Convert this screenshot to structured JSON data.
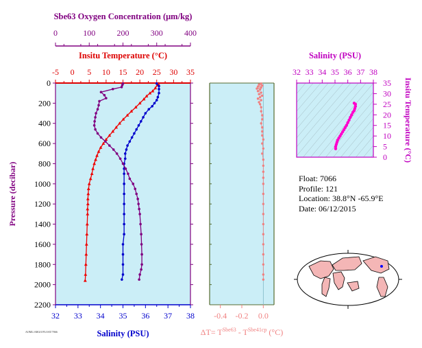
{
  "chart_data": [
    {
      "type": "scatter",
      "name": "profile",
      "ylabel": "Pressure (decibar)",
      "ylim": [
        2200,
        0
      ],
      "yticks": [
        0,
        200,
        400,
        600,
        800,
        1000,
        1200,
        1400,
        1600,
        1800,
        2000,
        2200
      ],
      "axes": {
        "oxygen": {
          "label": "Sbe63 Oxygen Concentration (μm/kg)",
          "range": [
            0,
            400
          ],
          "ticks": [
            0,
            100,
            200,
            300,
            400
          ],
          "color": "#800080"
        },
        "temperature": {
          "label": "Insitu Temperature (°C)",
          "range": [
            -5,
            35
          ],
          "ticks": [
            -5,
            0,
            5,
            10,
            15,
            20,
            25,
            30,
            35
          ],
          "color": "#dd0000"
        },
        "salinity": {
          "label": "Salinity (PSU)",
          "range": [
            32,
            38
          ],
          "ticks": [
            32,
            33,
            34,
            35,
            36,
            37,
            38
          ],
          "color": "#0000cc"
        }
      },
      "series": [
        {
          "key": "temperature",
          "color": "#ee0000",
          "marker": "triangle",
          "points": [
            [
              25.5,
              5
            ],
            [
              25.2,
              20
            ],
            [
              24.6,
              50
            ],
            [
              23.8,
              80
            ],
            [
              23.0,
              100
            ],
            [
              22.0,
              130
            ],
            [
              21.2,
              160
            ],
            [
              20.0,
              200
            ],
            [
              18.8,
              240
            ],
            [
              17.5,
              280
            ],
            [
              16.3,
              320
            ],
            [
              15.1,
              360
            ],
            [
              14.0,
              400
            ],
            [
              13.0,
              440
            ],
            [
              12.0,
              480
            ],
            [
              11.0,
              520
            ],
            [
              10.0,
              560
            ],
            [
              9.2,
              600
            ],
            [
              8.4,
              640
            ],
            [
              7.8,
              680
            ],
            [
              7.3,
              720
            ],
            [
              6.9,
              760
            ],
            [
              6.5,
              800
            ],
            [
              6.1,
              850
            ],
            [
              5.8,
              900
            ],
            [
              5.4,
              950
            ],
            [
              5.0,
              1000
            ],
            [
              4.8,
              1050
            ],
            [
              4.7,
              1100
            ],
            [
              4.6,
              1150
            ],
            [
              4.6,
              1200
            ],
            [
              4.5,
              1250
            ],
            [
              4.5,
              1300
            ],
            [
              4.4,
              1400
            ],
            [
              4.3,
              1500
            ],
            [
              4.2,
              1600
            ],
            [
              4.1,
              1700
            ],
            [
              4.0,
              1800
            ],
            [
              3.9,
              1900
            ],
            [
              3.8,
              1960
            ]
          ]
        },
        {
          "key": "salinity",
          "color": "#0000cc",
          "marker": "dot",
          "points": [
            [
              36.5,
              5
            ],
            [
              36.6,
              30
            ],
            [
              36.6,
              60
            ],
            [
              36.6,
              100
            ],
            [
              36.55,
              140
            ],
            [
              36.5,
              170
            ],
            [
              36.4,
              200
            ],
            [
              36.3,
              230
            ],
            [
              36.15,
              260
            ],
            [
              36.0,
              300
            ],
            [
              35.9,
              340
            ],
            [
              35.8,
              380
            ],
            [
              35.7,
              420
            ],
            [
              35.6,
              460
            ],
            [
              35.5,
              500
            ],
            [
              35.4,
              540
            ],
            [
              35.3,
              580
            ],
            [
              35.2,
              620
            ],
            [
              35.15,
              660
            ],
            [
              35.1,
              700
            ],
            [
              35.1,
              750
            ],
            [
              35.05,
              800
            ],
            [
              35.05,
              850
            ],
            [
              35.05,
              900
            ],
            [
              35.05,
              1000
            ],
            [
              35.05,
              1100
            ],
            [
              35.05,
              1200
            ],
            [
              35.05,
              1300
            ],
            [
              35.05,
              1400
            ],
            [
              35.05,
              1500
            ],
            [
              35.0,
              1600
            ],
            [
              35.0,
              1700
            ],
            [
              35.0,
              1800
            ],
            [
              35.0,
              1900
            ],
            [
              34.95,
              1950
            ]
          ]
        },
        {
          "key": "oxygen",
          "color": "#800080",
          "marker": "dot",
          "points": [
            [
              200,
              5
            ],
            [
              198,
              20
            ],
            [
              196,
              40
            ],
            [
              170,
              60
            ],
            [
              135,
              90
            ],
            [
              145,
              120
            ],
            [
              150,
              150
            ],
            [
              130,
              180
            ],
            [
              128,
              220
            ],
            [
              125,
              260
            ],
            [
              120,
              300
            ],
            [
              118,
              340
            ],
            [
              116,
              380
            ],
            [
              115,
              420
            ],
            [
              118,
              460
            ],
            [
              125,
              500
            ],
            [
              135,
              540
            ],
            [
              148,
              580
            ],
            [
              160,
              620
            ],
            [
              172,
              660
            ],
            [
              182,
              700
            ],
            [
              192,
              750
            ],
            [
              200,
              800
            ],
            [
              208,
              850
            ],
            [
              215,
              900
            ],
            [
              220,
              950
            ],
            [
              230,
              1000
            ],
            [
              236,
              1050
            ],
            [
              240,
              1100
            ],
            [
              244,
              1150
            ],
            [
              246,
              1200
            ],
            [
              248,
              1250
            ],
            [
              250,
              1300
            ],
            [
              252,
              1400
            ],
            [
              254,
              1500
            ],
            [
              255,
              1600
            ],
            [
              256,
              1700
            ],
            [
              256,
              1800
            ],
            [
              254,
              1850
            ],
            [
              250,
              1900
            ],
            [
              248,
              1950
            ]
          ]
        }
      ]
    },
    {
      "type": "scatter",
      "name": "delta-temperature",
      "xlabel": "ΔT= T^Sbe63 - T^Sbe41cp (°C)",
      "xlabel_parts": {
        "prefix": "ΔT= T",
        "sup1": "Sbe63",
        "mid": " - T",
        "sup2": "Sbe41cp",
        "suffix": " (°C)"
      },
      "xlim": [
        -0.5,
        0.1
      ],
      "xticks": [
        -0.4,
        -0.2,
        0.0
      ],
      "xtick_labels": [
        "-0.4",
        "-0.2",
        "0.0"
      ],
      "ylim": [
        2200,
        0
      ],
      "color": "#f08080",
      "points": [
        [
          -0.02,
          5
        ],
        [
          -0.04,
          15
        ],
        [
          -0.01,
          25
        ],
        [
          -0.05,
          35
        ],
        [
          -0.02,
          45
        ],
        [
          -0.06,
          55
        ],
        [
          -0.03,
          65
        ],
        [
          -0.05,
          80
        ],
        [
          -0.02,
          95
        ],
        [
          -0.04,
          110
        ],
        [
          -0.01,
          125
        ],
        [
          -0.03,
          140
        ],
        [
          -0.05,
          155
        ],
        [
          -0.02,
          170
        ],
        [
          -0.04,
          190
        ],
        [
          -0.03,
          210
        ],
        [
          -0.02,
          240
        ],
        [
          -0.02,
          280
        ],
        [
          -0.01,
          320
        ],
        [
          -0.01,
          360
        ],
        [
          -0.02,
          400
        ],
        [
          -0.01,
          440
        ],
        [
          -0.01,
          480
        ],
        [
          -0.01,
          520
        ],
        [
          0.0,
          560
        ],
        [
          -0.01,
          600
        ],
        [
          0.0,
          650
        ],
        [
          -0.01,
          700
        ],
        [
          0.0,
          760
        ],
        [
          0.0,
          820
        ],
        [
          0.0,
          880
        ],
        [
          0.0,
          940
        ],
        [
          0.0,
          1000
        ],
        [
          0.0,
          1100
        ],
        [
          0.0,
          1200
        ],
        [
          0.0,
          1300
        ],
        [
          0.0,
          1400
        ],
        [
          0.0,
          1500
        ],
        [
          0.0,
          1600
        ],
        [
          0.0,
          1700
        ],
        [
          0.0,
          1800
        ],
        [
          0.0,
          1900
        ],
        [
          0.0,
          1950
        ]
      ]
    },
    {
      "type": "scatter",
      "name": "t-s-diagram",
      "xlabel": "Salinity (PSU)",
      "ylabel": "Insitu Temperature (°C)",
      "xlim": [
        32,
        38
      ],
      "ylim": [
        0,
        35
      ],
      "xticks": [
        32,
        33,
        34,
        35,
        36,
        37,
        38
      ],
      "yticks": [
        0,
        5,
        10,
        15,
        20,
        25,
        30,
        35
      ],
      "color": "#ff00cc",
      "points": [
        [
          35.05,
          4
        ],
        [
          35.05,
          5
        ],
        [
          35.1,
          6
        ],
        [
          35.15,
          7
        ],
        [
          35.2,
          8
        ],
        [
          35.3,
          9
        ],
        [
          35.4,
          10
        ],
        [
          35.5,
          11
        ],
        [
          35.6,
          12
        ],
        [
          35.7,
          13
        ],
        [
          35.8,
          14
        ],
        [
          35.9,
          15
        ],
        [
          36.0,
          16.3
        ],
        [
          36.1,
          17.5
        ],
        [
          36.2,
          18.8
        ],
        [
          36.3,
          20
        ],
        [
          36.4,
          21.2
        ],
        [
          36.5,
          22
        ],
        [
          36.55,
          23
        ],
        [
          36.6,
          24
        ],
        [
          36.6,
          25
        ],
        [
          36.5,
          25.5
        ]
      ]
    }
  ],
  "info": {
    "float": "Float:  7066",
    "profile": "Profile:  121",
    "location": "Location:  38.8°N  -65.9°E",
    "date": "Date:  06/12/2015"
  },
  "footer": {
    "tiny": "AOML/ARGO/FLOAT/7066"
  },
  "colors": {
    "panel_bg": "#cbeef7",
    "map_ocean": "#ffffff",
    "map_land": "#f4b6b6"
  }
}
